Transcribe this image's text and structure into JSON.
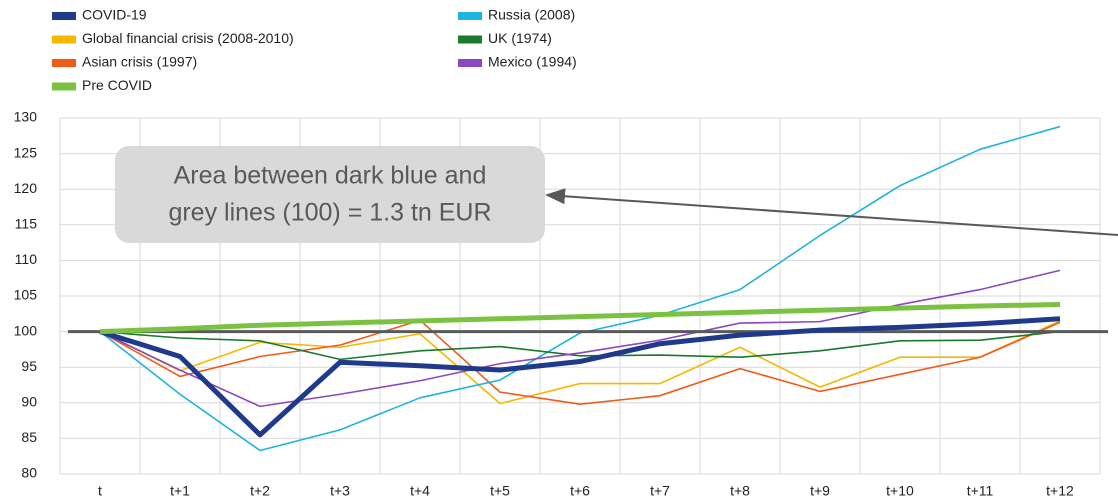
{
  "chart_data": {
    "type": "line",
    "categories": [
      "t",
      "t+1",
      "t+2",
      "t+3",
      "t+4",
      "t+5",
      "t+6",
      "t+7",
      "t+8",
      "t+9",
      "t+10",
      "t+11",
      "t+12"
    ],
    "series": [
      {
        "name": "COVID-19",
        "color": "#1f3a8a",
        "width": 5,
        "values": [
          100,
          96.5,
          85.5,
          95.7,
          95.2,
          94.6,
          95.8,
          98.3,
          99.5,
          100.2,
          100.6,
          101.1,
          101.8
        ]
      },
      {
        "name": "Global financial crisis (2008-2010)",
        "color": "#f5b800",
        "width": 1.6,
        "values": [
          100,
          94.5,
          98.5,
          97.8,
          99.7,
          89.9,
          92.7,
          92.7,
          97.8,
          92.2,
          96.4,
          96.4,
          101.5
        ]
      },
      {
        "name": "Asian crisis (1997)",
        "color": "#f05a1a",
        "width": 1.6,
        "values": [
          100,
          93.7,
          96.5,
          98.1,
          101.6,
          91.5,
          89.8,
          91.0,
          94.8,
          91.6,
          94.0,
          96.4,
          101.3
        ]
      },
      {
        "name": "Pre COVID",
        "color": "#7cc242",
        "width": 5,
        "values": [
          100,
          100.4,
          100.9,
          101.2,
          101.5,
          101.8,
          102.1,
          102.4,
          102.7,
          103.0,
          103.3,
          103.6,
          103.8
        ]
      },
      {
        "name": "Russia (2008)",
        "color": "#1fb3e0",
        "width": 1.6,
        "values": [
          100,
          91.2,
          83.3,
          86.2,
          90.7,
          93.2,
          99.8,
          102.3,
          105.9,
          113.5,
          120.5,
          125.6,
          128.8
        ]
      },
      {
        "name": "UK (1974)",
        "color": "#1a7a2e",
        "width": 1.6,
        "values": [
          100,
          99.1,
          98.7,
          96.1,
          97.3,
          97.9,
          96.6,
          96.7,
          96.4,
          97.3,
          98.7,
          98.8,
          100.0
        ]
      },
      {
        "name": "Mexico (1994)",
        "color": "#8b48c2",
        "width": 1.6,
        "values": [
          100,
          94.6,
          89.5,
          91.2,
          93.1,
          95.5,
          97.0,
          98.8,
          101.2,
          101.4,
          103.8,
          105.9,
          108.6
        ]
      }
    ],
    "reference_line": {
      "value": 100,
      "color": "#595959"
    },
    "annotation": [
      "Area between dark blue and",
      "grey lines (100) = 1.3 tn EUR"
    ],
    "ylim": [
      80,
      130
    ],
    "yticks": [
      80,
      85,
      90,
      95,
      100,
      105,
      110,
      115,
      120,
      125,
      130
    ],
    "grid": true
  }
}
